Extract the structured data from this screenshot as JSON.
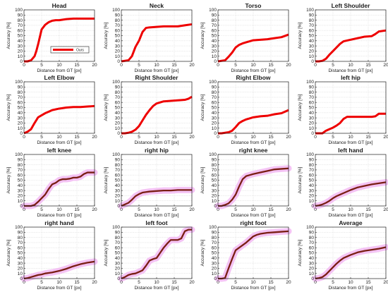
{
  "figure": {
    "legend_label": "Ours",
    "colors": {
      "curve_red": "#ee0000",
      "curve_dark": "#7a1e14",
      "band": "#f2b8f2",
      "axis": "#222222",
      "grid": "#dadada"
    }
  },
  "chart_data": [
    {
      "type": "line",
      "title": "Head",
      "xlabel": "Distance from GT [px]",
      "ylabel": "Accuracy [%]",
      "xlim": [
        0,
        20
      ],
      "ylim": [
        0,
        100
      ],
      "xticks": [
        0,
        5,
        10,
        15,
        20
      ],
      "yticks": [
        0,
        10,
        20,
        30,
        40,
        50,
        60,
        70,
        80,
        90,
        100
      ],
      "grid": true,
      "style": "red",
      "legend": "lower-center",
      "series": [
        {
          "name": "Ours",
          "x": [
            0,
            1,
            2,
            3,
            3.5,
            4,
            5,
            6,
            7,
            8,
            9,
            10,
            12,
            14,
            16,
            18,
            20
          ],
          "y": [
            0,
            0,
            2,
            10,
            20,
            33,
            62,
            71,
            76,
            79,
            80,
            80,
            82,
            83,
            83,
            83,
            83
          ]
        }
      ]
    },
    {
      "type": "line",
      "title": "Neck",
      "xlabel": "Distance from GT [px]",
      "ylabel": "Accuracy [%]",
      "xlim": [
        0,
        20
      ],
      "ylim": [
        0,
        100
      ],
      "xticks": [
        0,
        5,
        10,
        15,
        20
      ],
      "yticks": [
        0,
        10,
        20,
        30,
        40,
        50,
        60,
        70,
        80,
        90,
        100
      ],
      "grid": true,
      "style": "red",
      "series": [
        {
          "x": [
            0,
            1,
            2,
            3,
            4,
            5,
            6,
            7,
            8,
            10,
            12,
            14,
            16,
            17,
            18,
            20
          ],
          "y": [
            0,
            1,
            2,
            10,
            28,
            40,
            57,
            65,
            66,
            67,
            68,
            68,
            68,
            69,
            70,
            72
          ]
        }
      ]
    },
    {
      "type": "line",
      "title": "Torso",
      "xlabel": "Distance from GT [px]",
      "ylabel": "Accuracy [%]",
      "xlim": [
        0,
        20
      ],
      "ylim": [
        0,
        100
      ],
      "xticks": [
        0,
        5,
        10,
        15,
        20
      ],
      "yticks": [
        0,
        10,
        20,
        30,
        40,
        50,
        60,
        70,
        80,
        90,
        100
      ],
      "grid": true,
      "style": "red",
      "series": [
        {
          "x": [
            0,
            1,
            2,
            3,
            4,
            5,
            6,
            7,
            8,
            10,
            12,
            14,
            16,
            18,
            20
          ],
          "y": [
            0,
            1,
            2,
            9,
            17,
            27,
            32,
            35,
            37,
            41,
            42,
            43,
            45,
            47,
            52
          ]
        }
      ]
    },
    {
      "type": "line",
      "title": "Left Shoulder",
      "xlabel": "Distance from GT [px]",
      "ylabel": "Accuracy [%]",
      "xlim": [
        0,
        20
      ],
      "ylim": [
        0,
        100
      ],
      "xticks": [
        0,
        5,
        10,
        15,
        20
      ],
      "yticks": [
        0,
        10,
        20,
        30,
        40,
        50,
        60,
        70,
        80,
        90,
        100
      ],
      "grid": true,
      "style": "red",
      "series": [
        {
          "x": [
            0,
            1,
            2,
            3,
            4,
            5,
            6,
            7,
            8,
            10,
            12,
            14,
            16,
            17,
            18,
            20
          ],
          "y": [
            0,
            0,
            1,
            5,
            13,
            20,
            27,
            34,
            39,
            42,
            45,
            48,
            49,
            53,
            58,
            60
          ]
        }
      ]
    },
    {
      "type": "line",
      "title": "Left Elbow",
      "xlabel": "Distance from GT [px]",
      "ylabel": "Accuracy [%]",
      "xlim": [
        0,
        20
      ],
      "ylim": [
        0,
        100
      ],
      "xticks": [
        0,
        5,
        10,
        15,
        20
      ],
      "yticks": [
        0,
        10,
        20,
        30,
        40,
        50,
        60,
        70,
        80,
        90,
        100
      ],
      "grid": true,
      "style": "red",
      "series": [
        {
          "x": [
            0,
            1,
            2,
            3,
            4,
            5,
            6,
            7,
            8,
            10,
            12,
            14,
            16,
            18,
            20
          ],
          "y": [
            0,
            3,
            8,
            20,
            31,
            35,
            39,
            42,
            45,
            48,
            50,
            51,
            51,
            52,
            53
          ]
        }
      ]
    },
    {
      "type": "line",
      "title": "Right Shoulder",
      "xlabel": "Distance from GT [px]",
      "ylabel": "Accuracy [%]",
      "xlim": [
        0,
        20
      ],
      "ylim": [
        0,
        100
      ],
      "xticks": [
        0,
        5,
        10,
        15,
        20
      ],
      "yticks": [
        0,
        10,
        20,
        30,
        40,
        50,
        60,
        70,
        80,
        90,
        100
      ],
      "grid": true,
      "style": "red",
      "series": [
        {
          "x": [
            0,
            1,
            2,
            3,
            4,
            5,
            6,
            7,
            8,
            9,
            10,
            12,
            14,
            16,
            18,
            19,
            20
          ],
          "y": [
            0,
            0,
            1,
            3,
            7,
            14,
            25,
            36,
            45,
            53,
            58,
            62,
            63,
            64,
            65,
            67,
            71
          ]
        }
      ]
    },
    {
      "type": "line",
      "title": "Right Elbow",
      "xlabel": "Distance from GT [px]",
      "ylabel": "Accuracy [%]",
      "xlim": [
        0,
        20
      ],
      "ylim": [
        0,
        100
      ],
      "xticks": [
        0,
        5,
        10,
        15,
        20
      ],
      "yticks": [
        0,
        10,
        20,
        30,
        40,
        50,
        60,
        70,
        80,
        90,
        100
      ],
      "grid": true,
      "style": "red",
      "series": [
        {
          "x": [
            0,
            1,
            2,
            3,
            4,
            5,
            6,
            7,
            8,
            10,
            12,
            14,
            16,
            18,
            20
          ],
          "y": [
            0,
            0,
            1,
            2,
            5,
            12,
            20,
            24,
            27,
            31,
            33,
            34,
            37,
            39,
            45
          ]
        }
      ]
    },
    {
      "type": "line",
      "title": "left hip",
      "xlabel": "Distance from GT [px]",
      "ylabel": "Accuracy [%]",
      "xlim": [
        0,
        20
      ],
      "ylim": [
        0,
        100
      ],
      "xticks": [
        0,
        5,
        10,
        15,
        20
      ],
      "yticks": [
        0,
        10,
        20,
        30,
        40,
        50,
        60,
        70,
        80,
        90,
        100
      ],
      "grid": true,
      "style": "red",
      "series": [
        {
          "x": [
            0,
            1,
            2,
            3,
            4,
            5,
            6,
            7,
            8,
            9,
            10,
            12,
            14,
            16,
            17,
            18,
            20
          ],
          "y": [
            0,
            0,
            0,
            5,
            8,
            11,
            15,
            20,
            28,
            32,
            32,
            32,
            32,
            32,
            33,
            38,
            38
          ]
        }
      ]
    },
    {
      "type": "line",
      "title": "left knee",
      "xlabel": "Distance from GT [px]",
      "ylabel": "Accuracy [%]",
      "xlim": [
        0,
        20
      ],
      "ylim": [
        0,
        100
      ],
      "xticks": [
        0,
        5,
        10,
        15,
        20
      ],
      "yticks": [
        0,
        10,
        20,
        30,
        40,
        50,
        60,
        70,
        80,
        90,
        100
      ],
      "grid": true,
      "style": "dark",
      "series": [
        {
          "x": [
            0,
            1,
            2,
            3,
            4,
            5,
            6,
            7,
            8,
            9,
            10,
            11,
            12,
            13,
            14,
            15,
            16,
            17,
            18,
            19,
            20
          ],
          "y": [
            0,
            0,
            0,
            2,
            8,
            15,
            22,
            33,
            42,
            45,
            50,
            52,
            52,
            53,
            55,
            55,
            57,
            62,
            65,
            65,
            65
          ]
        }
      ]
    },
    {
      "type": "line",
      "title": "right hip",
      "xlabel": "Distance from GT [px]",
      "ylabel": "Accuracy [%]",
      "xlim": [
        0,
        20
      ],
      "ylim": [
        0,
        100
      ],
      "xticks": [
        0,
        5,
        10,
        15,
        20
      ],
      "yticks": [
        0,
        10,
        20,
        30,
        40,
        50,
        60,
        70,
        80,
        90,
        100
      ],
      "grid": true,
      "style": "dark",
      "series": [
        {
          "x": [
            0,
            1,
            2,
            3,
            4,
            5,
            6,
            7,
            8,
            10,
            12,
            14,
            16,
            18,
            20
          ],
          "y": [
            0,
            3,
            6,
            12,
            19,
            23,
            26,
            27,
            28,
            29,
            30,
            30,
            31,
            31,
            31
          ]
        }
      ]
    },
    {
      "type": "line",
      "title": "right knee",
      "xlabel": "Distance from GT [px]",
      "ylabel": "Accuracy [%]",
      "xlim": [
        0,
        20
      ],
      "ylim": [
        0,
        100
      ],
      "xticks": [
        0,
        5,
        10,
        15,
        20
      ],
      "yticks": [
        0,
        10,
        20,
        30,
        40,
        50,
        60,
        70,
        80,
        90,
        100
      ],
      "grid": true,
      "style": "dark",
      "series": [
        {
          "x": [
            0,
            1,
            2,
            3,
            4,
            5,
            6,
            7,
            8,
            9,
            10,
            12,
            14,
            16,
            18,
            20
          ],
          "y": [
            0,
            0,
            2,
            5,
            12,
            22,
            38,
            52,
            58,
            60,
            62,
            65,
            68,
            71,
            72,
            73
          ]
        }
      ]
    },
    {
      "type": "line",
      "title": "left hand",
      "xlabel": "Distance from GT [px]",
      "ylabel": "Accuracy [%]",
      "xlim": [
        0,
        20
      ],
      "ylim": [
        0,
        100
      ],
      "xticks": [
        0,
        5,
        10,
        15,
        20
      ],
      "yticks": [
        0,
        10,
        20,
        30,
        40,
        50,
        60,
        70,
        80,
        90,
        100
      ],
      "grid": true,
      "style": "dark",
      "series": [
        {
          "x": [
            0,
            1,
            2,
            3,
            4,
            5,
            6,
            7,
            8,
            10,
            12,
            14,
            16,
            18,
            20
          ],
          "y": [
            0,
            1,
            3,
            6,
            10,
            15,
            19,
            22,
            25,
            31,
            36,
            39,
            42,
            44,
            46
          ]
        }
      ]
    },
    {
      "type": "line",
      "title": "right hand",
      "xlabel": "Distance from GT [px]",
      "ylabel": "Accuracy [%]",
      "xlim": [
        0,
        20
      ],
      "ylim": [
        0,
        100
      ],
      "xticks": [
        0,
        5,
        10,
        15,
        20
      ],
      "yticks": [
        0,
        10,
        20,
        30,
        40,
        50,
        60,
        70,
        80,
        90,
        100
      ],
      "grid": true,
      "style": "dark",
      "series": [
        {
          "x": [
            0,
            1,
            2,
            3,
            4,
            5,
            6,
            7,
            8,
            10,
            12,
            14,
            16,
            18,
            20
          ],
          "y": [
            0,
            1,
            3,
            5,
            7,
            8,
            10,
            11,
            12,
            15,
            19,
            24,
            28,
            31,
            33
          ]
        }
      ]
    },
    {
      "type": "line",
      "title": "left foot",
      "xlabel": "Distance from GT [px]",
      "ylabel": "Accuracy [%]",
      "xlim": [
        0,
        20
      ],
      "ylim": [
        0,
        100
      ],
      "xticks": [
        0,
        5,
        10,
        15,
        20
      ],
      "yticks": [
        0,
        10,
        20,
        30,
        40,
        50,
        60,
        70,
        80,
        90,
        100
      ],
      "grid": true,
      "style": "dark",
      "series": [
        {
          "x": [
            0,
            1,
            2,
            3,
            4,
            5,
            6,
            7,
            8,
            9,
            10,
            11,
            12,
            13,
            14,
            15,
            16,
            17,
            18,
            19,
            20
          ],
          "y": [
            0,
            3,
            7,
            9,
            10,
            13,
            16,
            25,
            35,
            38,
            40,
            50,
            60,
            68,
            75,
            75,
            75,
            78,
            92,
            95,
            95
          ]
        }
      ]
    },
    {
      "type": "line",
      "title": "right foot",
      "xlabel": "Distance from GT [px]",
      "ylabel": "Accuracy [%]",
      "xlim": [
        0,
        20
      ],
      "ylim": [
        0,
        100
      ],
      "xticks": [
        0,
        5,
        10,
        15,
        20
      ],
      "yticks": [
        0,
        10,
        20,
        30,
        40,
        50,
        60,
        70,
        80,
        90,
        100
      ],
      "grid": true,
      "style": "dark",
      "series": [
        {
          "x": [
            0,
            1,
            2,
            3,
            4,
            5,
            6,
            7,
            8,
            9,
            10,
            11,
            12,
            13,
            14,
            16,
            18,
            20
          ],
          "y": [
            0,
            0,
            1,
            20,
            38,
            55,
            60,
            65,
            70,
            76,
            82,
            85,
            87,
            88,
            89,
            90,
            91,
            92
          ]
        }
      ]
    },
    {
      "type": "line",
      "title": "Average",
      "xlabel": "Distance from GT [px]",
      "ylabel": "Accuracy [%]",
      "xlim": [
        0,
        20
      ],
      "ylim": [
        0,
        100
      ],
      "xticks": [
        0,
        5,
        10,
        15,
        20
      ],
      "yticks": [
        0,
        10,
        20,
        30,
        40,
        50,
        60,
        70,
        80,
        90,
        100
      ],
      "grid": true,
      "style": "dark",
      "series": [
        {
          "x": [
            0,
            1,
            2,
            3,
            4,
            5,
            6,
            7,
            8,
            10,
            12,
            14,
            16,
            18,
            20
          ],
          "y": [
            0,
            1,
            3,
            8,
            15,
            22,
            29,
            35,
            40,
            46,
            51,
            54,
            56,
            58,
            61
          ]
        }
      ]
    }
  ]
}
